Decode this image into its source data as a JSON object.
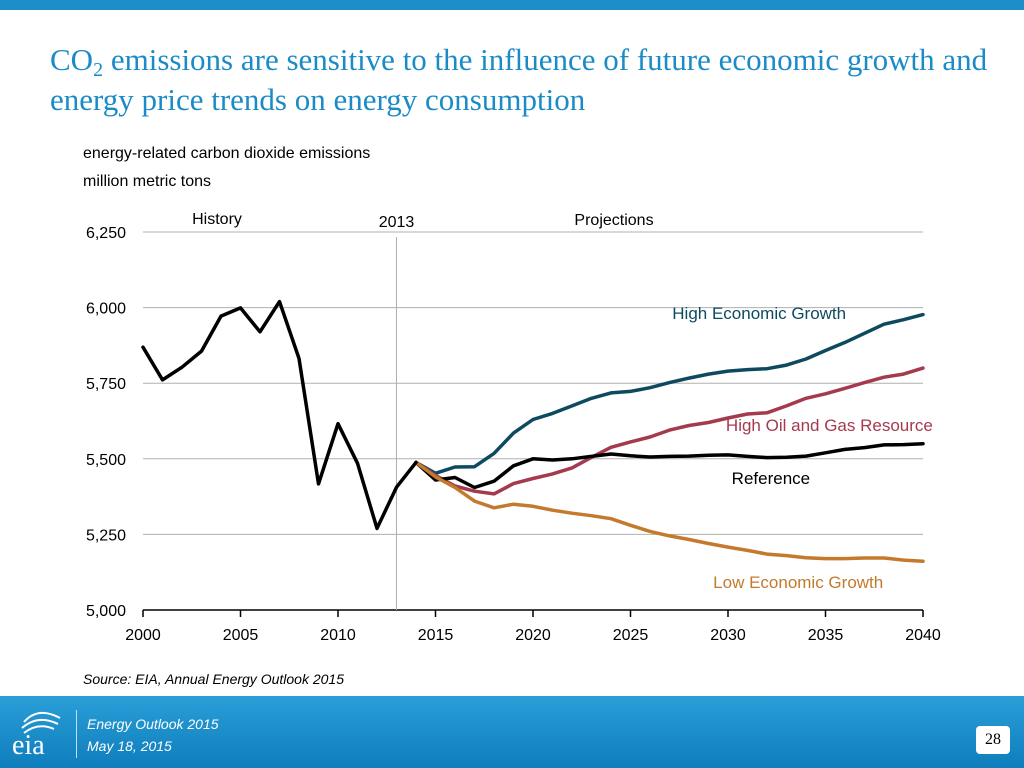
{
  "header": {
    "title_pre": "CO",
    "title_sub": "2",
    "title_post": " emissions are sensitive to the influence of future economic growth and energy price trends on energy consumption",
    "subtitle_line1": "energy-related carbon dioxide emissions",
    "subtitle_line2": "million metric tons"
  },
  "chart_data": {
    "type": "line",
    "title": "",
    "xlabel": "",
    "ylabel": "million metric tons",
    "xlim": [
      2000,
      2040
    ],
    "ylim": [
      5000,
      6250
    ],
    "x_ticks": [
      2000,
      2005,
      2010,
      2015,
      2020,
      2025,
      2030,
      2035,
      2040
    ],
    "x_tick_labels": [
      "2000",
      "2005",
      "2010",
      "2015",
      "2020",
      "2025",
      "2030",
      "2035",
      "2040"
    ],
    "y_ticks": [
      5000,
      5250,
      5500,
      5750,
      6000,
      6250
    ],
    "y_tick_labels": [
      "5,000",
      "5,250",
      "5,500",
      "5,750",
      "6,000",
      "6,250"
    ],
    "grid": true,
    "divider": {
      "year": 2013,
      "label": "2013"
    },
    "section_labels": {
      "history": "History",
      "projections": "Projections"
    },
    "series": [
      {
        "name": "High Economic Growth",
        "color": "#0d4a5f",
        "label_anchor_x": 2031.6,
        "label_anchor_y": 5963,
        "x": [
          2014,
          2015,
          2016,
          2017,
          2018,
          2019,
          2020,
          2021,
          2022,
          2023,
          2024,
          2025,
          2026,
          2027,
          2028,
          2029,
          2030,
          2031,
          2032,
          2033,
          2034,
          2035,
          2036,
          2037,
          2038,
          2039,
          2040
        ],
        "values": [
          5488,
          5452,
          5473,
          5474,
          5518,
          5585,
          5630,
          5650,
          5675,
          5700,
          5718,
          5723,
          5735,
          5752,
          5767,
          5780,
          5790,
          5795,
          5798,
          5810,
          5830,
          5858,
          5885,
          5915,
          5945,
          5960,
          5977
        ]
      },
      {
        "name": "High Oil and Gas Resource",
        "color": "#a53a4f",
        "label_anchor_x": 2035.2,
        "label_anchor_y": 5592,
        "x": [
          2014,
          2015,
          2016,
          2017,
          2018,
          2019,
          2020,
          2021,
          2022,
          2023,
          2024,
          2025,
          2026,
          2027,
          2028,
          2029,
          2030,
          2031,
          2032,
          2033,
          2034,
          2035,
          2036,
          2037,
          2038,
          2039,
          2040
        ],
        "values": [
          5488,
          5445,
          5410,
          5393,
          5384,
          5418,
          5435,
          5450,
          5470,
          5505,
          5538,
          5556,
          5572,
          5595,
          5610,
          5620,
          5635,
          5648,
          5652,
          5675,
          5700,
          5715,
          5733,
          5752,
          5770,
          5780,
          5800
        ]
      },
      {
        "name": "Reference",
        "color": "#000000",
        "label_anchor_x": 2032.2,
        "label_anchor_y": 5417,
        "x": [
          2014,
          2015,
          2016,
          2017,
          2018,
          2019,
          2020,
          2021,
          2022,
          2023,
          2024,
          2025,
          2026,
          2027,
          2028,
          2029,
          2030,
          2031,
          2032,
          2033,
          2034,
          2035,
          2036,
          2037,
          2038,
          2039,
          2040
        ],
        "values": [
          5488,
          5430,
          5438,
          5405,
          5426,
          5477,
          5500,
          5496,
          5500,
          5508,
          5516,
          5510,
          5506,
          5508,
          5509,
          5512,
          5513,
          5508,
          5504,
          5505,
          5509,
          5520,
          5531,
          5537,
          5546,
          5547,
          5550
        ]
      },
      {
        "name": "Low Economic Growth",
        "color": "#c47a2d",
        "label_anchor_x": 2033.6,
        "label_anchor_y": 5072,
        "x": [
          2014,
          2015,
          2016,
          2017,
          2018,
          2019,
          2020,
          2021,
          2022,
          2023,
          2024,
          2025,
          2026,
          2027,
          2028,
          2029,
          2030,
          2031,
          2032,
          2033,
          2034,
          2035,
          2036,
          2037,
          2038,
          2039,
          2040
        ],
        "values": [
          5488,
          5440,
          5405,
          5360,
          5338,
          5350,
          5343,
          5330,
          5320,
          5312,
          5302,
          5280,
          5260,
          5245,
          5233,
          5220,
          5208,
          5197,
          5185,
          5180,
          5173,
          5170,
          5170,
          5172,
          5172,
          5165,
          5161
        ]
      },
      {
        "name": "History",
        "color": "#000000",
        "show_label": false,
        "x": [
          2000,
          2001,
          2002,
          2003,
          2004,
          2005,
          2006,
          2007,
          2008,
          2009,
          2010,
          2011,
          2012,
          2013,
          2014
        ],
        "values": [
          5869,
          5761,
          5803,
          5856,
          5972,
          5999,
          5920,
          6020,
          5832,
          5417,
          5616,
          5485,
          5270,
          5406,
          5488
        ]
      }
    ]
  },
  "source_text": "Source:  EIA, Annual Energy Outlook 2015",
  "footer": {
    "logo_text": "eia",
    "line1": "Energy  Outlook 2015",
    "line2": "May 18, 2015",
    "page_number": "28"
  },
  "colors": {
    "title": "#1a8bc7",
    "footer_bar": "#1c8fc9",
    "grid": "#b0b0b0"
  }
}
